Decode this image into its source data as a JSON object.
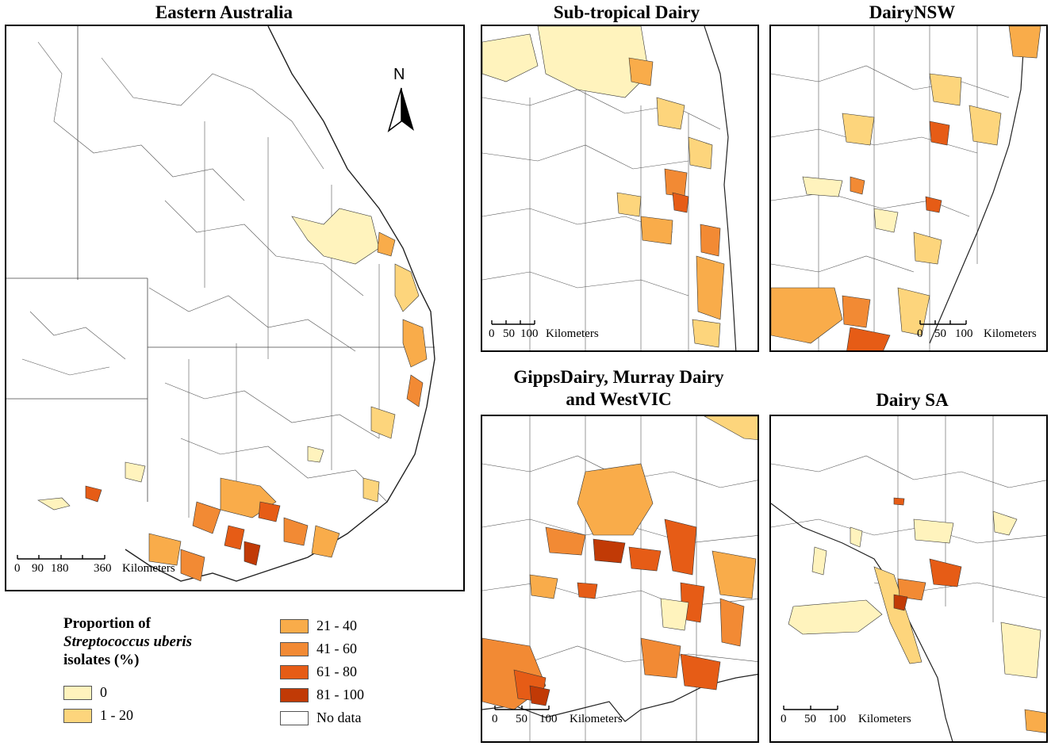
{
  "colors": {
    "c0": "#fff3bd",
    "c1_20": "#fdd57c",
    "c21_40": "#f9ac4a",
    "c41_60": "#f28a34",
    "c61_80": "#e65c16",
    "c81_100": "#c13a06",
    "no_data": "#ffffff",
    "boundary": "#333333"
  },
  "panels": {
    "eastern": {
      "title": "Eastern Australia",
      "north_label": "N",
      "scale_ticks": [
        "0",
        "90",
        "180",
        "360"
      ],
      "scale_unit": "Kilometers"
    },
    "subtropical": {
      "title": "Sub-tropical Dairy",
      "scale_ticks": [
        "0",
        "50",
        "100"
      ],
      "scale_unit": "Kilometers"
    },
    "nsw": {
      "title": "DairyNSW",
      "scale_ticks": [
        "0",
        "50",
        "100"
      ],
      "scale_unit": "Kilometers"
    },
    "vic": {
      "title_line1": "GippsDairy, Murray Dairy",
      "title_line2": "and WestVIC",
      "scale_ticks": [
        "0",
        "50",
        "100"
      ],
      "scale_unit": "Kilometers"
    },
    "sa": {
      "title": "Dairy SA",
      "scale_ticks": [
        "0",
        "50",
        "100"
      ],
      "scale_unit": "Kilometers"
    }
  },
  "legend": {
    "title_line1": "Proportion of",
    "title_italic": "Streptococcus uberis",
    "title_line3": "isolates (%)",
    "items": [
      {
        "label": "0",
        "color_key": "c0"
      },
      {
        "label": "1 - 20",
        "color_key": "c1_20"
      },
      {
        "label": "21 - 40",
        "color_key": "c21_40"
      },
      {
        "label": "41 - 60",
        "color_key": "c41_60"
      },
      {
        "label": "61 - 80",
        "color_key": "c61_80"
      },
      {
        "label": "81 - 100",
        "color_key": "c81_100"
      },
      {
        "label": "No data",
        "color_key": "no_data"
      }
    ]
  }
}
